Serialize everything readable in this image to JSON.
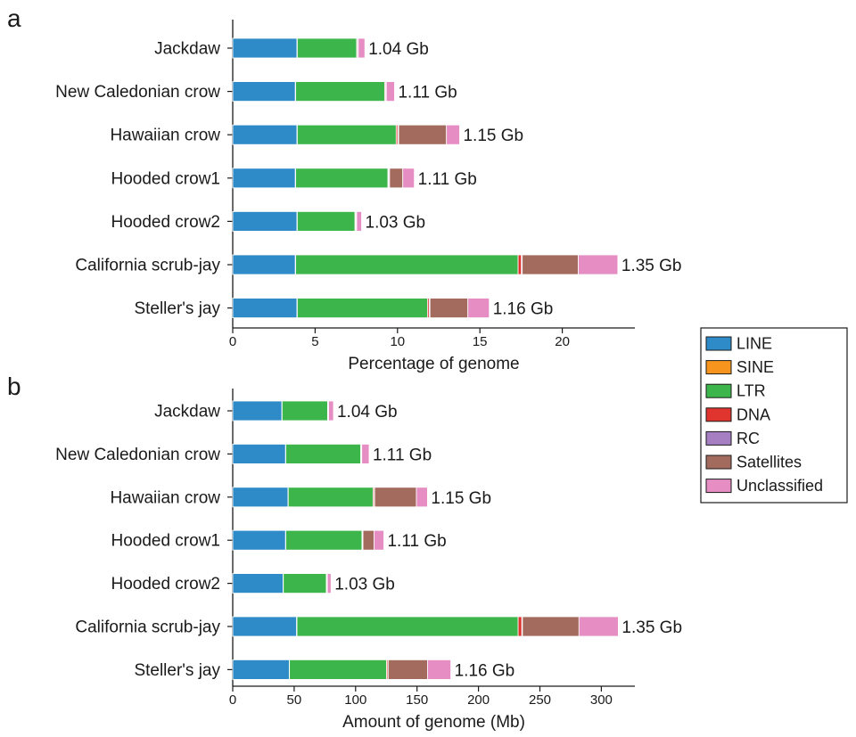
{
  "series_colors": {
    "LINE": "#2e8bc8",
    "SINE": "#f7941d",
    "LTR": "#3cb54a",
    "DNA": "#e0342f",
    "RC": "#a57fc1",
    "Satellites": "#a36b5e",
    "Unclassified": "#e68ec3"
  },
  "legend": {
    "placement": "right, between panels",
    "items": [
      "LINE",
      "SINE",
      "LTR",
      "DNA",
      "RC",
      "Satellites",
      "Unclassified"
    ]
  },
  "chart_data": [
    {
      "panel": "a",
      "type": "bar",
      "orientation": "horizontal",
      "stacked": true,
      "xlabel": "Percentage of genome",
      "ylabel": "",
      "xlim": [
        0,
        24
      ],
      "xticks": [
        0,
        5,
        10,
        15,
        20
      ],
      "categories": [
        "Jackdaw",
        "New Caledonian crow",
        "Hawaiian crow",
        "Hooded crow1",
        "Hooded crow2",
        "California scrub-jay",
        "Steller's jay"
      ],
      "totals": [
        "1.04 Gb",
        "1.11 Gb",
        "1.15 Gb",
        "1.11 Gb",
        "1.03 Gb",
        "1.35 Gb",
        "1.16 Gb"
      ],
      "series": [
        {
          "name": "LINE",
          "values": [
            3.9,
            3.8,
            3.9,
            3.8,
            3.9,
            3.8,
            3.9
          ]
        },
        {
          "name": "SINE",
          "values": [
            0.02,
            0.02,
            0.02,
            0.02,
            0.02,
            0.02,
            0.02
          ]
        },
        {
          "name": "LTR",
          "values": [
            3.6,
            5.4,
            6.0,
            5.6,
            3.5,
            13.5,
            7.9
          ]
        },
        {
          "name": "DNA",
          "values": [
            0.05,
            0.05,
            0.1,
            0.05,
            0.05,
            0.2,
            0.1
          ]
        },
        {
          "name": "RC",
          "values": [
            0.05,
            0.05,
            0.05,
            0.05,
            0.05,
            0.05,
            0.05
          ]
        },
        {
          "name": "Satellites",
          "values": [
            0.0,
            0.0,
            2.9,
            0.8,
            0.0,
            3.4,
            2.3
          ]
        },
        {
          "name": "Unclassified",
          "values": [
            0.4,
            0.5,
            0.8,
            0.7,
            0.3,
            2.4,
            1.3
          ]
        }
      ]
    },
    {
      "panel": "b",
      "type": "bar",
      "orientation": "horizontal",
      "stacked": true,
      "xlabel": "Amount of genome (Mb)",
      "ylabel": "",
      "xlim": [
        0,
        330
      ],
      "xticks": [
        0,
        50,
        100,
        150,
        200,
        250,
        300
      ],
      "categories": [
        "Jackdaw",
        "New Caledonian crow",
        "Hawaiian crow",
        "Hooded crow1",
        "Hooded crow2",
        "California scrub-jay",
        "Steller's jay"
      ],
      "totals": [
        "1.04 Gb",
        "1.11 Gb",
        "1.15 Gb",
        "1.11 Gb",
        "1.03 Gb",
        "1.35 Gb",
        "1.16 Gb"
      ],
      "series": [
        {
          "name": "LINE",
          "values": [
            40,
            43,
            45,
            43,
            41,
            52,
            46
          ]
        },
        {
          "name": "SINE",
          "values": [
            0.2,
            0.2,
            0.2,
            0.2,
            0.2,
            0.3,
            0.2
          ]
        },
        {
          "name": "LTR",
          "values": [
            37,
            61,
            69,
            62,
            35,
            180,
            79
          ]
        },
        {
          "name": "DNA",
          "values": [
            0.5,
            0.5,
            1.0,
            0.5,
            0.5,
            3.0,
            1.0
          ]
        },
        {
          "name": "RC",
          "values": [
            0.3,
            0.3,
            0.3,
            0.3,
            0.3,
            0.5,
            0.3
          ]
        },
        {
          "name": "Satellites",
          "values": [
            0,
            0,
            34,
            9,
            0,
            46,
            32
          ]
        },
        {
          "name": "Unclassified",
          "values": [
            4,
            6,
            9,
            8,
            3,
            32,
            19
          ]
        }
      ]
    }
  ]
}
